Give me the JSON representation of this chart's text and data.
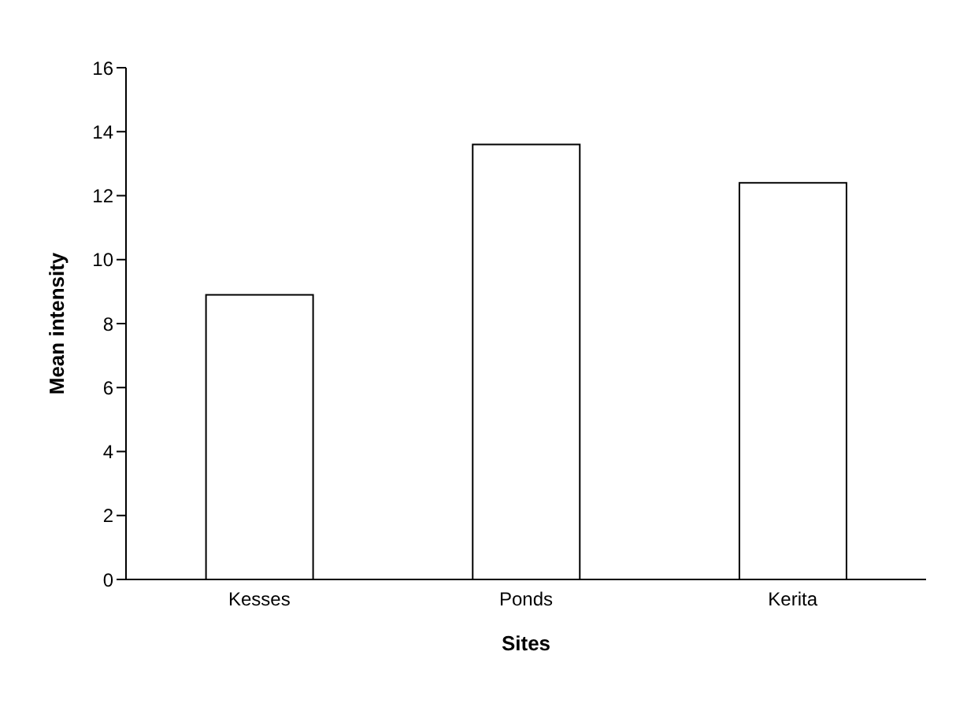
{
  "chart_data": {
    "type": "bar",
    "xlabel": "Sites",
    "ylabel": "Mean intensity",
    "categories": [
      "Kesses",
      "Ponds",
      "Kerita"
    ],
    "values": [
      8.9,
      13.6,
      12.4
    ],
    "color": "#ffffff",
    "ylim": [
      0,
      16
    ],
    "yticks": [
      0,
      2,
      4,
      6,
      8,
      10,
      12,
      14,
      16
    ],
    "grid": false,
    "legend": false
  }
}
